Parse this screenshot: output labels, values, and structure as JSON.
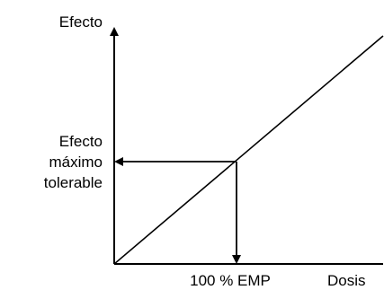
{
  "labels": {
    "y_axis": "Efecto",
    "x_axis": "Dosis",
    "y_point_line1": "Efecto",
    "y_point_line2": "máximo",
    "y_point_line3": "tolerable",
    "x_point": "100 % EMP"
  },
  "colors": {
    "ink": "#000000",
    "background": "#ffffff"
  }
}
